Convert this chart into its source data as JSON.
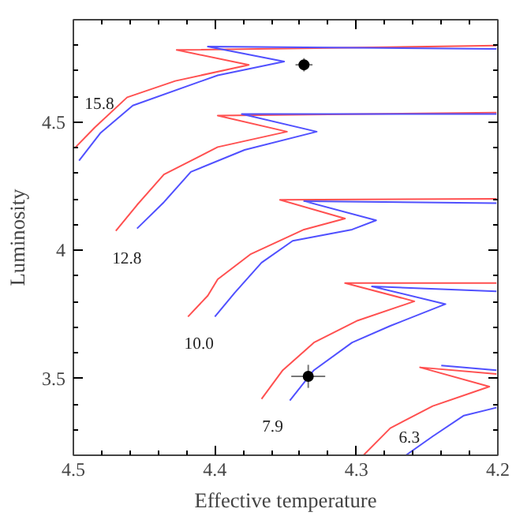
{
  "chart_data": {
    "type": "line",
    "xlabel": "Effective temperature",
    "ylabel": "Luminosity",
    "xlim": [
      4.5,
      4.2
    ],
    "ylim": [
      3.2,
      4.9
    ],
    "xticks": [
      4.5,
      {
        "value": 4.48,
        "label": null
      },
      {
        "value": 4.46,
        "label": null
      },
      {
        "value": 4.44,
        "label": null
      },
      {
        "value": 4.42,
        "label": null
      },
      4.4,
      {
        "value": 4.38,
        "label": null
      },
      {
        "value": 4.36,
        "label": null
      },
      {
        "value": 4.34,
        "label": null
      },
      {
        "value": 4.32,
        "label": null
      },
      4.3,
      {
        "value": 4.28,
        "label": null
      },
      {
        "value": 4.26,
        "label": null
      },
      {
        "value": 4.24,
        "label": null
      },
      {
        "value": 4.22,
        "label": null
      },
      4.2
    ],
    "yticks": [
      {
        "value": 3.3,
        "label": null
      },
      {
        "value": 3.4,
        "label": null
      },
      3.5,
      {
        "value": 3.6,
        "label": null
      },
      {
        "value": 3.7,
        "label": null
      },
      {
        "value": 3.8,
        "label": null
      },
      {
        "value": 3.9,
        "label": null
      },
      4,
      {
        "value": 4.1,
        "label": null
      },
      {
        "value": 4.2,
        "label": null
      },
      {
        "value": 4.3,
        "label": null
      },
      {
        "value": 4.4,
        "label": null
      },
      4.5,
      {
        "value": 4.6,
        "label": null
      },
      {
        "value": 4.7,
        "label": null
      },
      {
        "value": 4.8,
        "label": null
      }
    ],
    "grid": false,
    "line_style": "solid",
    "marker": "none",
    "series": [
      {
        "color": "#ff5050",
        "x": [
          4.499,
          4.485,
          4.462,
          4.428,
          4.376,
          4.427,
          4.201
        ],
        "values": [
          4.399,
          4.479,
          4.597,
          4.661,
          4.724,
          4.782,
          4.799
        ]
      },
      {
        "color": "#5050ff",
        "x": [
          4.496,
          4.481,
          4.458,
          4.398,
          4.351,
          4.405,
          4.201
        ],
        "values": [
          4.35,
          4.457,
          4.565,
          4.683,
          4.737,
          4.795,
          4.786
        ]
      },
      {
        "color": "#ff5050",
        "x": [
          4.47,
          4.455,
          4.436,
          4.398,
          4.349,
          4.398,
          4.201
        ],
        "values": [
          4.076,
          4.177,
          4.296,
          4.403,
          4.463,
          4.526,
          4.537
        ]
      },
      {
        "color": "#5050ff",
        "x": [
          4.455,
          4.436,
          4.417,
          4.379,
          4.328,
          4.381,
          4.201
        ],
        "values": [
          4.085,
          4.188,
          4.306,
          4.392,
          4.463,
          4.532,
          4.532
        ]
      },
      {
        "color": "#ff5050",
        "x": [
          4.419,
          4.405,
          4.398,
          4.375,
          4.337,
          4.308,
          4.354,
          4.201
        ],
        "values": [
          3.741,
          3.823,
          3.887,
          3.984,
          4.081,
          4.124,
          4.197,
          4.201
        ]
      },
      {
        "color": "#5050ff",
        "x": [
          4.4,
          4.386,
          4.367,
          4.345,
          4.303,
          4.286,
          4.337,
          4.201
        ],
        "values": [
          3.741,
          3.834,
          3.952,
          4.037,
          4.081,
          4.117,
          4.192,
          4.184
        ]
      },
      {
        "color": "#ff5050",
        "x": [
          4.367,
          4.352,
          4.33,
          4.299,
          4.259,
          4.308,
          4.201
        ],
        "values": [
          3.42,
          3.532,
          3.64,
          3.726,
          3.801,
          3.872,
          3.872
        ]
      },
      {
        "color": "#5050ff",
        "x": [
          4.347,
          4.33,
          4.303,
          4.276,
          4.237,
          4.289,
          4.201
        ],
        "values": [
          3.414,
          3.532,
          3.64,
          3.705,
          3.79,
          3.859,
          3.84
        ]
      },
      {
        "color": "#ff5050",
        "x": [
          4.295,
          4.276,
          4.246,
          4.206,
          4.255,
          4.201
        ],
        "values": [
          3.2,
          3.306,
          3.392,
          3.468,
          3.543,
          3.517
        ]
      },
      {
        "color": "#5050ff",
        "x": [
          4.265,
          4.246,
          4.224,
          4.201
        ],
        "values": [
          3.2,
          3.274,
          3.355,
          3.386
        ]
      },
      {
        "color": "#5050ff",
        "x": [
          4.24,
          4.201
        ],
        "values": [
          3.55,
          3.532
        ]
      },
      {
        "type": "scatter",
        "marker": "circle",
        "color": "#000000",
        "x": [
          4.337,
          4.334
        ],
        "values": [
          4.724,
          3.508
        ],
        "errors": [
          0.026,
          0.045
        ],
        "xerrors": [
          0.006,
          0.012
        ]
      }
    ],
    "annotations": [
      {
        "text": "15.8",
        "x": 4.466,
        "y": 4.575
      },
      {
        "text": "12.8",
        "x": 4.47,
        "y": 4.076
      },
      {
        "text": "10.0",
        "x": 4.419,
        "y": 3.741
      },
      {
        "text": "7.9",
        "x": 4.367,
        "y": 3.42
      },
      {
        "text": "6.3",
        "x": 4.247,
        "y": 3.27
      }
    ]
  }
}
